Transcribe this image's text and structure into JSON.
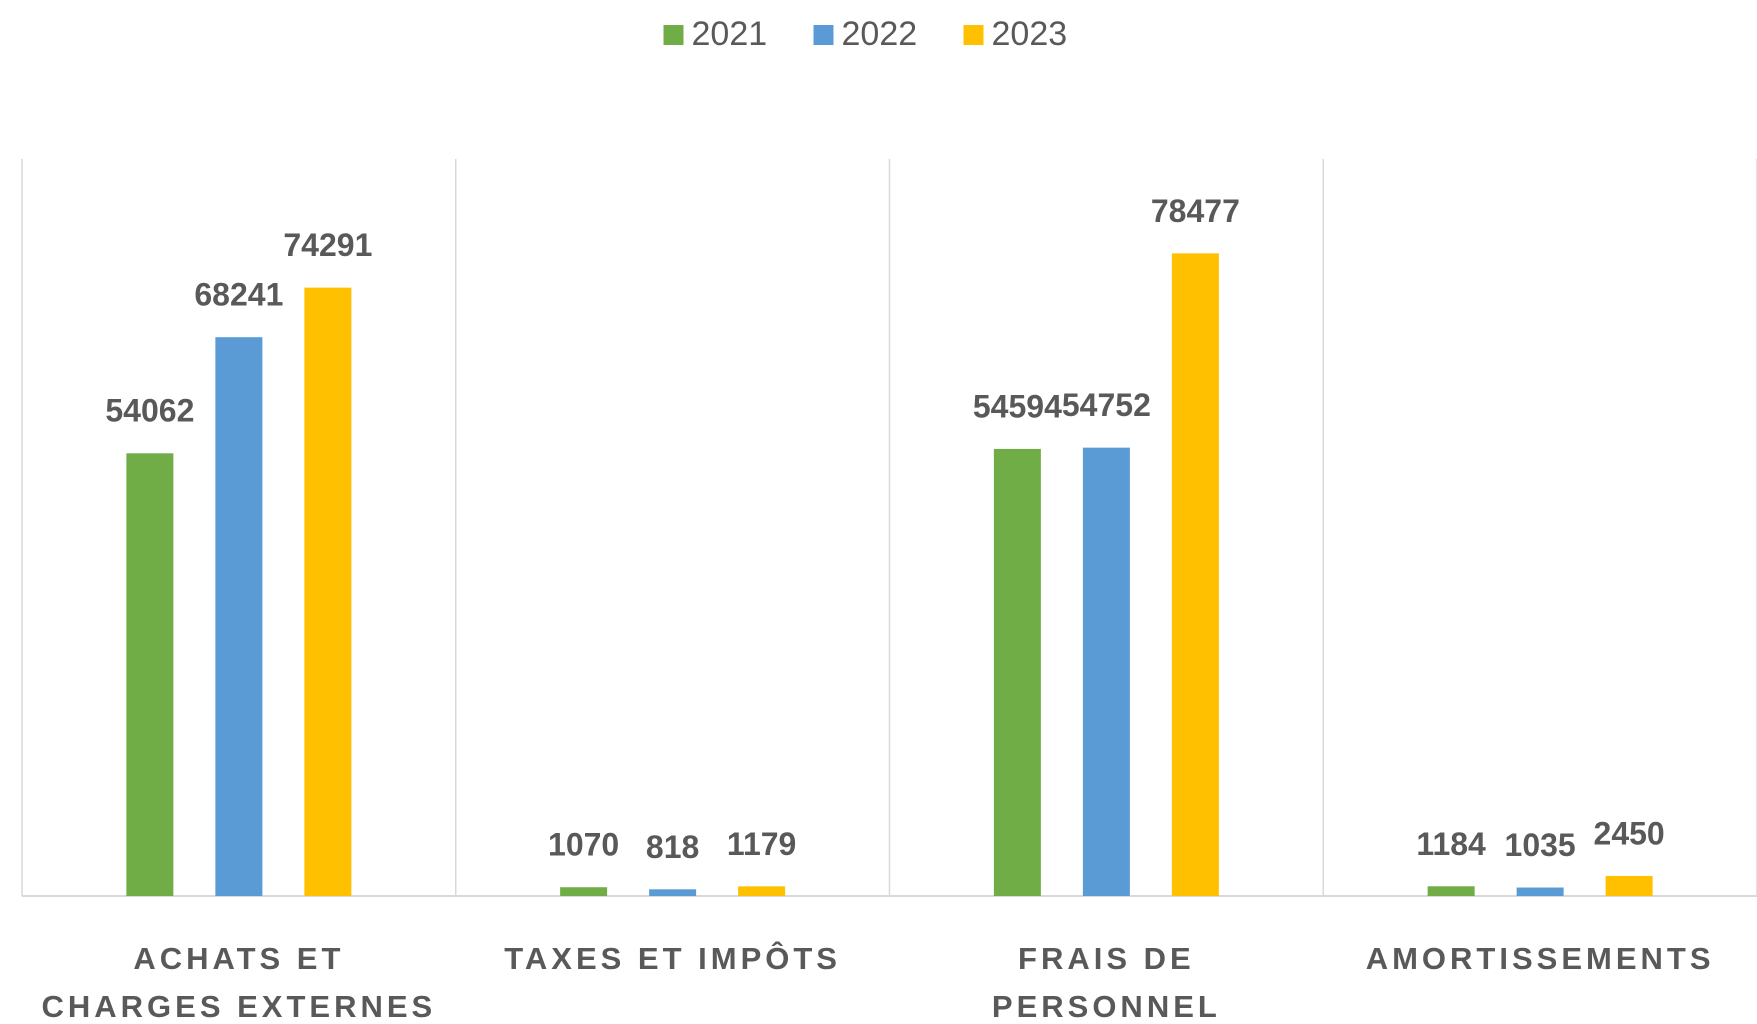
{
  "chart_data": {
    "type": "bar",
    "categories": [
      "ACHATS ET\nCHARGES EXTERNES",
      "TAXES ET IMPÔTS",
      "FRAIS DE\nPERSONNEL",
      "AMORTISSEMENTS"
    ],
    "series": [
      {
        "name": "2021",
        "color": "#70ad47",
        "values": [
          54062,
          1070,
          54594,
          1184
        ]
      },
      {
        "name": "2022",
        "color": "#5b9bd5",
        "values": [
          68241,
          818,
          54752,
          1035
        ]
      },
      {
        "name": "2023",
        "color": "#ffc000",
        "values": [
          74291,
          1179,
          78477,
          2450
        ]
      }
    ],
    "ylim": [
      0,
      90000
    ],
    "legend": "top"
  }
}
